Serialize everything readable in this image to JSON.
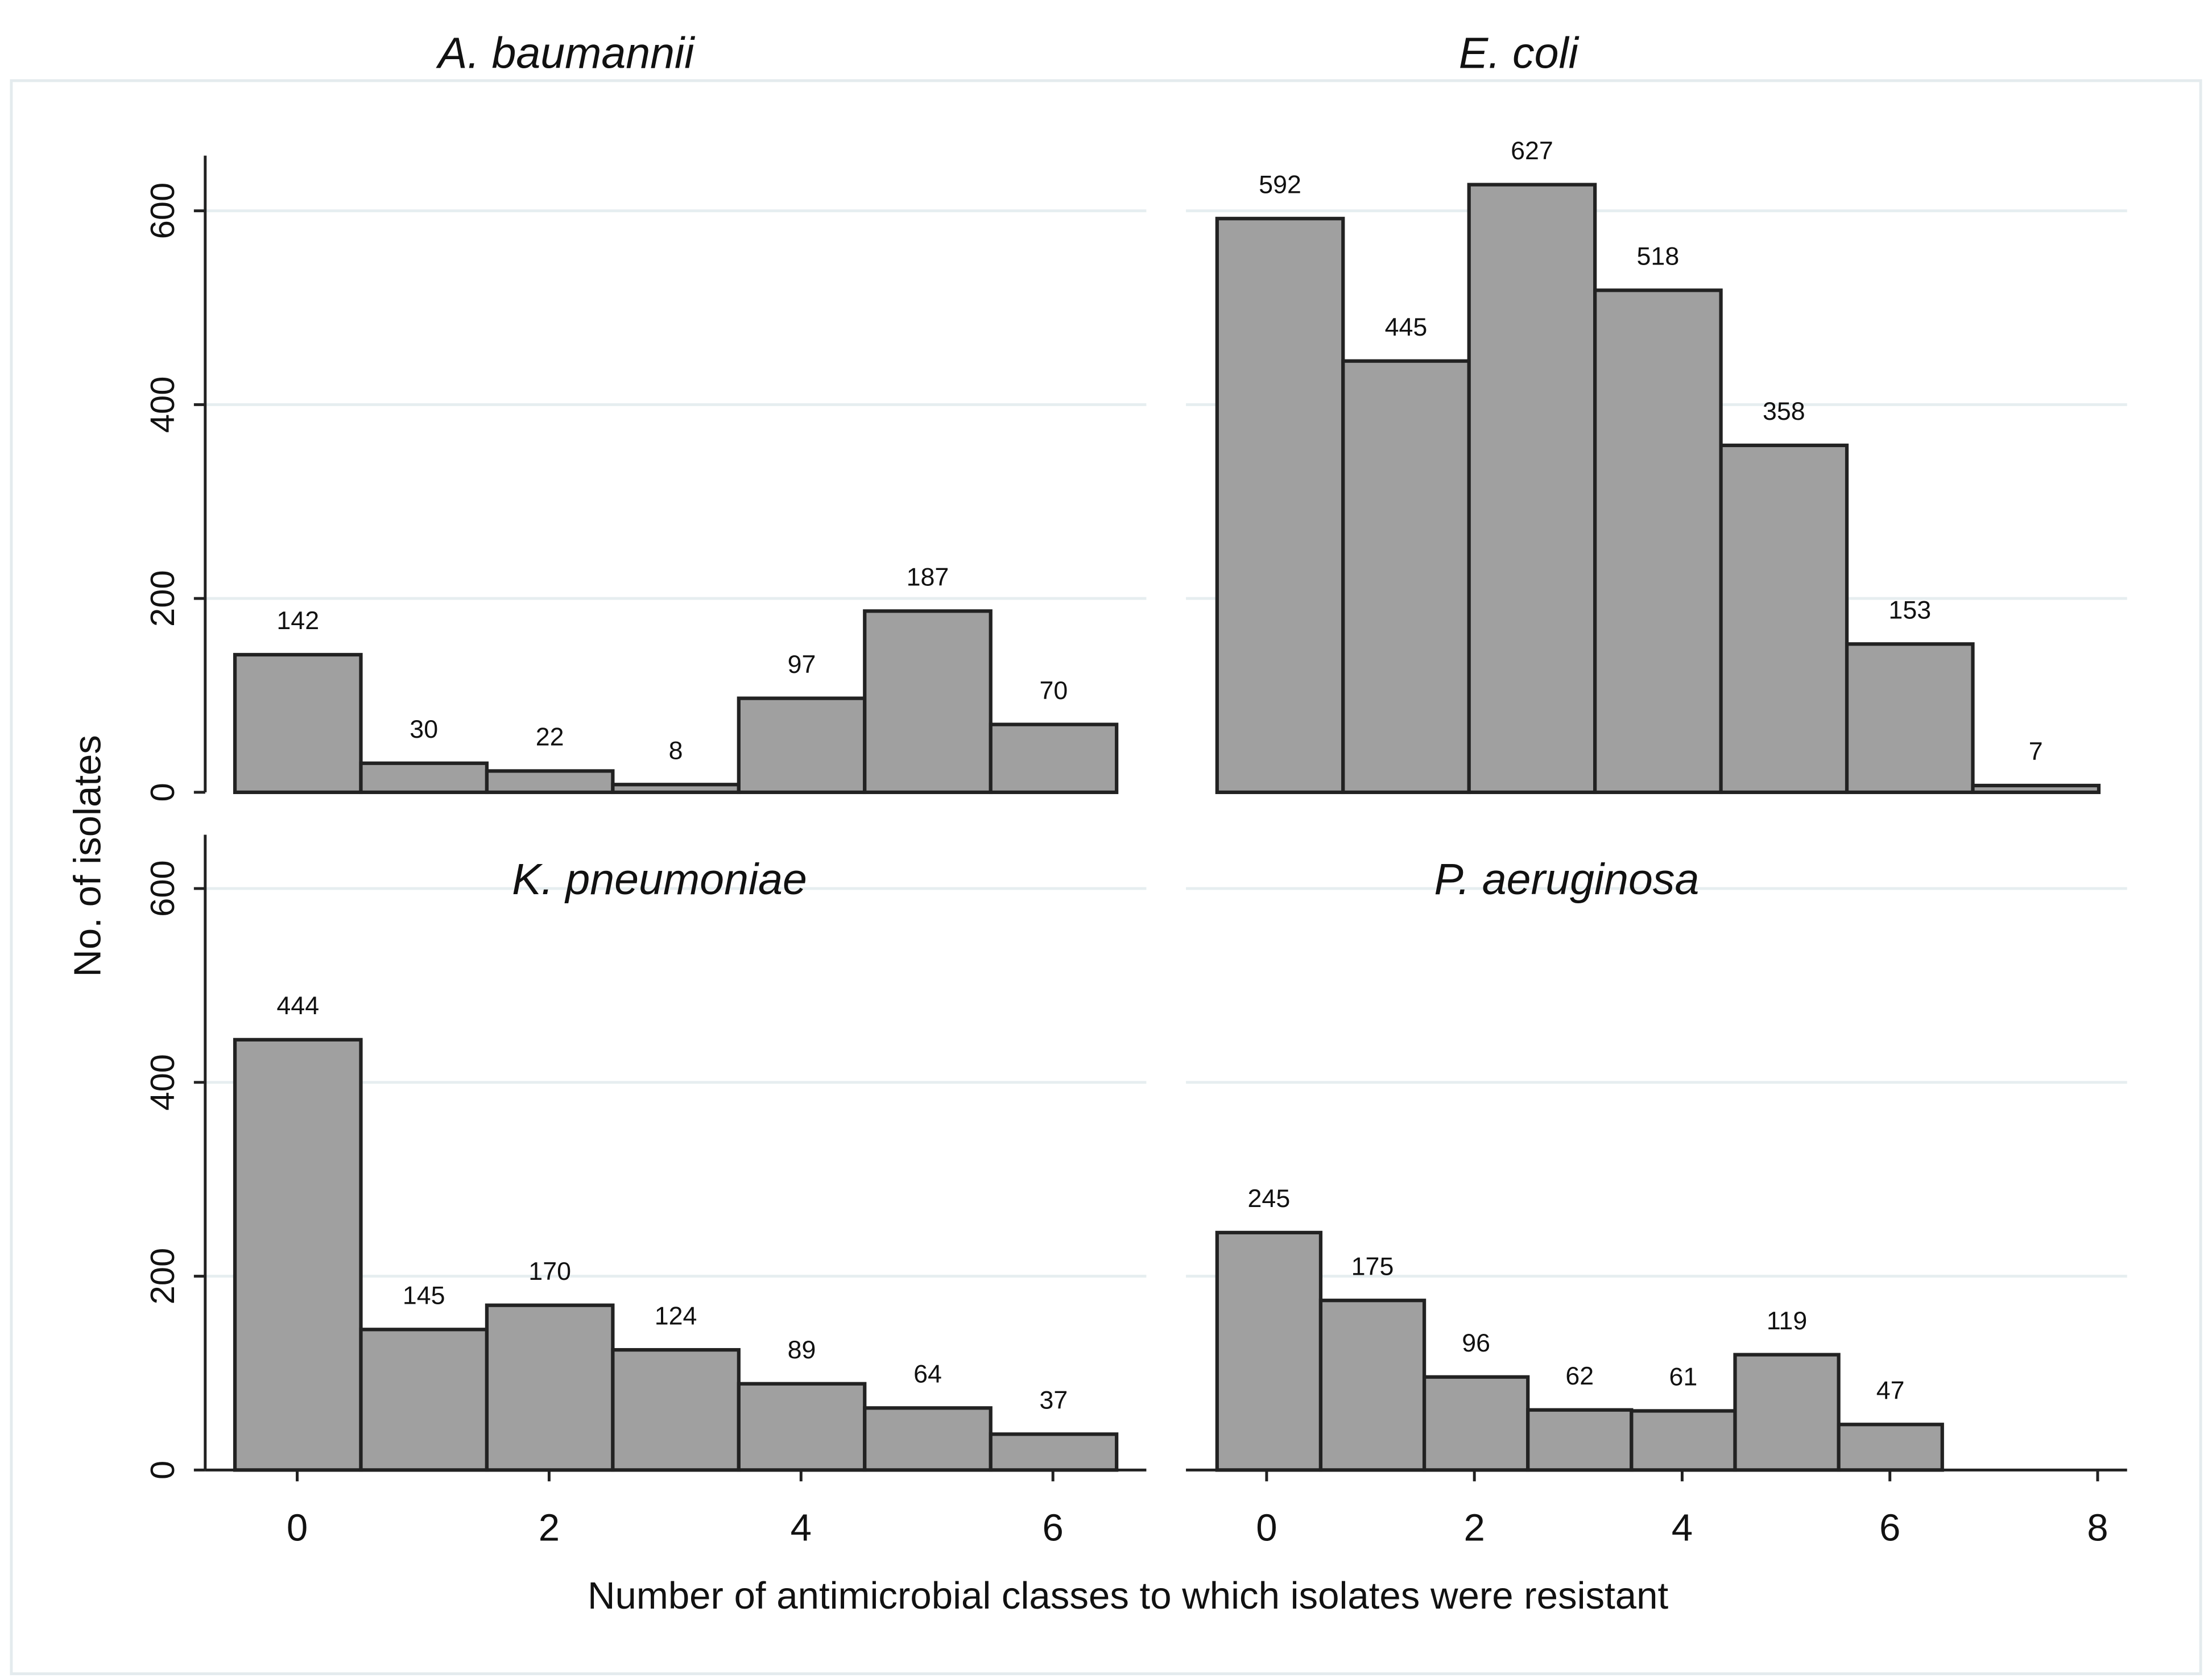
{
  "figure": {
    "xlabel": "Number of antimicrobial classes to which isolates were resistant",
    "ylabel": "No. of isolates",
    "y_ticks": [
      "0",
      "200",
      "400",
      "600"
    ],
    "colors": {
      "bar_fill": "#a0a0a0",
      "bar_stroke": "#222222",
      "grid": "#e6eef0",
      "frame": "#e4ebee"
    }
  },
  "chart_data": [
    {
      "type": "bar",
      "title": "A. baumannii",
      "categories": [
        0,
        1,
        2,
        3,
        4,
        5,
        6
      ],
      "values": [
        142,
        30,
        22,
        8,
        97,
        187,
        70
      ],
      "ylim": [
        0,
        650
      ],
      "grid": true
    },
    {
      "type": "bar",
      "title": "E. coli",
      "categories": [
        0,
        1,
        2,
        3,
        4,
        5,
        6
      ],
      "values": [
        592,
        445,
        627,
        518,
        358,
        153,
        7
      ],
      "ylim": [
        0,
        650
      ],
      "grid": true
    },
    {
      "type": "bar",
      "title": "K. pneumoniae",
      "categories": [
        0,
        1,
        2,
        3,
        4,
        5,
        6
      ],
      "values": [
        444,
        145,
        170,
        124,
        89,
        64,
        37
      ],
      "ylim": [
        0,
        650
      ],
      "xticks": [
        "0",
        "2",
        "4",
        "6"
      ],
      "grid": true
    },
    {
      "type": "bar",
      "title": "P. aeruginosa",
      "categories": [
        0,
        1,
        2,
        3,
        4,
        5,
        6
      ],
      "values": [
        245,
        175,
        96,
        62,
        61,
        119,
        47
      ],
      "ylim": [
        0,
        650
      ],
      "xticks": [
        "0",
        "2",
        "4",
        "6",
        "8"
      ],
      "grid": true
    }
  ]
}
